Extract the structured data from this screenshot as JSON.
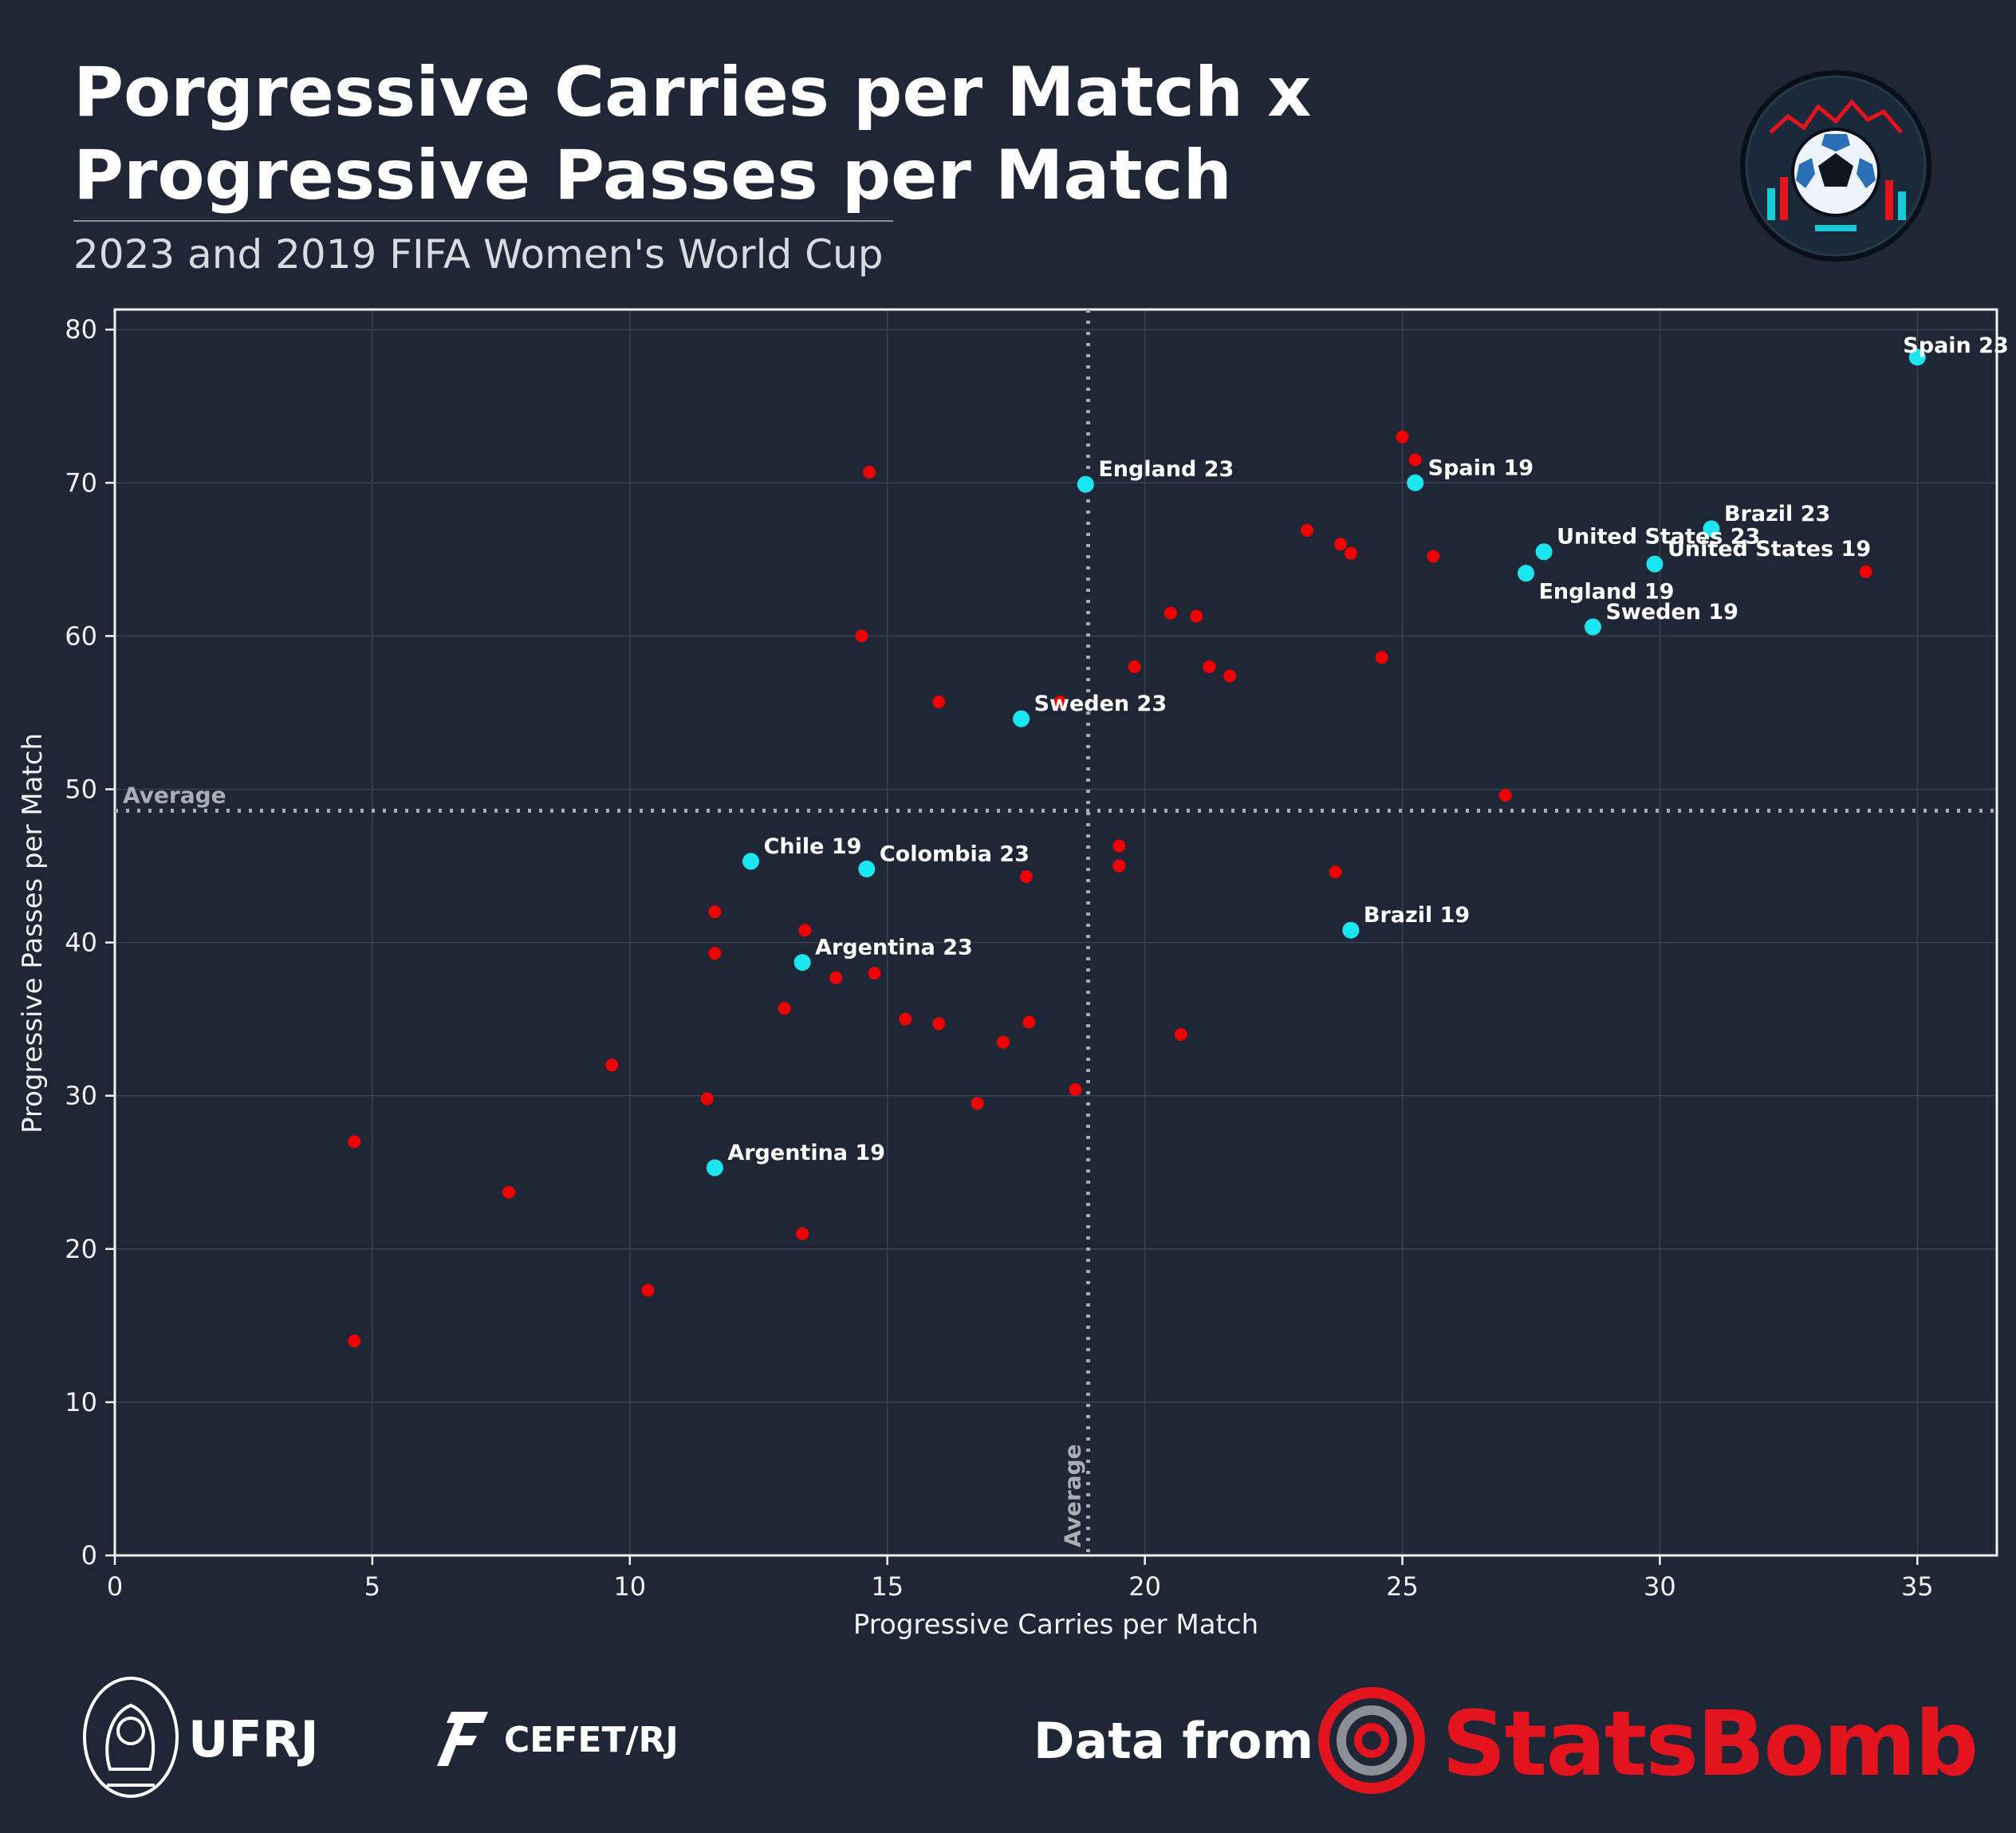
{
  "header": {
    "title_line1": "Porgressive Carries per Match x",
    "title_line2": "Progressive Passes per Match",
    "subtitle": "2023 and 2019 FIFA Women's World Cup"
  },
  "footer": {
    "ufrj": "UFRJ",
    "cefet": "CEFET/RJ",
    "data_from": "Data from",
    "statsbomb": "StatsBomb"
  },
  "colors": {
    "background": "#1f2636",
    "highlight": "#19e6f0",
    "other": "#f00000",
    "statsbomb_red": "#e3141e"
  },
  "chart_data": {
    "type": "scatter",
    "xlabel": "Progressive Carries per Match",
    "ylabel": "Progressive Passes per Match",
    "xlim": [
      0,
      36.5
    ],
    "ylim": [
      0,
      81.5
    ],
    "xticks": [
      0,
      5,
      10,
      15,
      20,
      25,
      30,
      35
    ],
    "yticks": [
      0,
      10,
      20,
      30,
      40,
      50,
      60,
      70,
      80
    ],
    "grid": true,
    "average_x": 18.9,
    "average_y": 48.6,
    "average_label": "Average",
    "highlighted": [
      {
        "label": "Spain 23",
        "x": 35.0,
        "y": 78.2
      },
      {
        "label": "England 23",
        "x": 18.85,
        "y": 69.9
      },
      {
        "label": "Spain 19",
        "x": 25.25,
        "y": 70.0
      },
      {
        "label": "Brazil 23",
        "x": 31.0,
        "y": 67.0
      },
      {
        "label": "United States 23",
        "x": 27.75,
        "y": 65.5
      },
      {
        "label": "United States 19",
        "x": 29.9,
        "y": 64.7
      },
      {
        "label": "England 19",
        "x": 27.4,
        "y": 64.1
      },
      {
        "label": "Sweden 19",
        "x": 28.7,
        "y": 60.6
      },
      {
        "label": "Sweden 23",
        "x": 17.6,
        "y": 54.6
      },
      {
        "label": "Chile 19",
        "x": 12.35,
        "y": 45.3
      },
      {
        "label": "Colombia 23",
        "x": 14.6,
        "y": 44.8
      },
      {
        "label": "Brazil 19",
        "x": 24.0,
        "y": 40.8
      },
      {
        "label": "Argentina 23",
        "x": 13.35,
        "y": 38.7
      },
      {
        "label": "Argentina 19",
        "x": 11.65,
        "y": 25.3
      }
    ],
    "others": [
      [
        14.65,
        70.7
      ],
      [
        25.0,
        73.0
      ],
      [
        25.25,
        71.5
      ],
      [
        23.15,
        66.9
      ],
      [
        23.8,
        66.0
      ],
      [
        24.0,
        65.4
      ],
      [
        25.6,
        65.2
      ],
      [
        34.0,
        64.2
      ],
      [
        20.5,
        61.5
      ],
      [
        21.0,
        61.3
      ],
      [
        14.5,
        60.0
      ],
      [
        19.8,
        58.0
      ],
      [
        21.25,
        58.0
      ],
      [
        21.65,
        57.4
      ],
      [
        24.6,
        58.6
      ],
      [
        16.0,
        55.7
      ],
      [
        18.35,
        55.7
      ],
      [
        27.0,
        49.6
      ],
      [
        19.5,
        46.3
      ],
      [
        19.5,
        45.0
      ],
      [
        17.7,
        44.3
      ],
      [
        23.7,
        44.6
      ],
      [
        11.65,
        42.0
      ],
      [
        13.4,
        40.8
      ],
      [
        11.65,
        39.3
      ],
      [
        14.0,
        37.7
      ],
      [
        14.75,
        38.0
      ],
      [
        13.0,
        35.7
      ],
      [
        15.35,
        35.0
      ],
      [
        16.0,
        34.7
      ],
      [
        17.75,
        34.8
      ],
      [
        17.25,
        33.5
      ],
      [
        20.7,
        34.0
      ],
      [
        9.65,
        32.0
      ],
      [
        11.5,
        29.8
      ],
      [
        16.75,
        29.5
      ],
      [
        18.65,
        30.4
      ],
      [
        4.65,
        27.0
      ],
      [
        7.65,
        23.7
      ],
      [
        13.35,
        21.0
      ],
      [
        10.35,
        17.3
      ],
      [
        4.65,
        14.0
      ]
    ]
  }
}
